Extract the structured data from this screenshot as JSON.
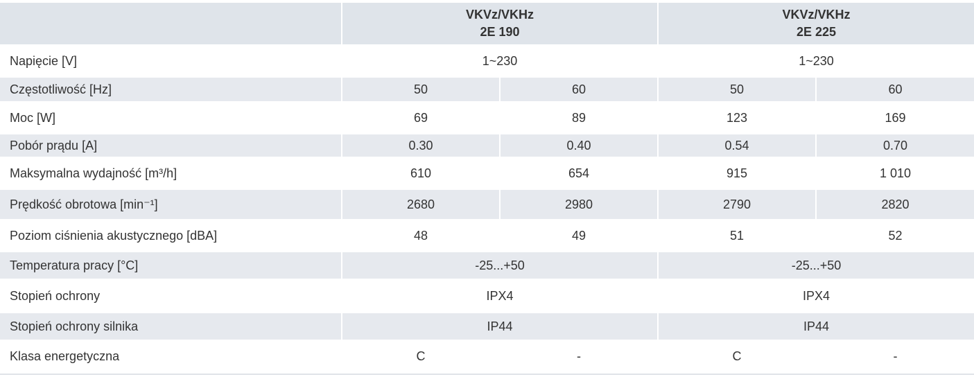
{
  "table": {
    "models": [
      {
        "line1": "VKVz/VKHz",
        "line2": "2E 190"
      },
      {
        "line1": "VKVz/VKHz",
        "line2": "2E 225"
      }
    ],
    "rows": [
      {
        "label": "Napięcie [V]",
        "cells": [
          "1~230",
          "1~230"
        ]
      },
      {
        "label": "Częstotliwość [Hz]",
        "cells": [
          "50",
          "60",
          "50",
          "60"
        ]
      },
      {
        "label": "Moc [W]",
        "cells": [
          "69",
          "89",
          "123",
          "169"
        ]
      },
      {
        "label": "Pobór prądu [A]",
        "cells": [
          "0.30",
          "0.40",
          "0.54",
          "0.70"
        ]
      },
      {
        "label": "Maksymalna wydajność [m³/h]",
        "cells": [
          "610",
          "654",
          "915",
          "1 010"
        ]
      },
      {
        "label": "Prędkość obrotowa [min⁻¹]",
        "cells": [
          "2680",
          "2980",
          "2790",
          "2820"
        ]
      },
      {
        "label": "Poziom ciśnienia akustycznego [dBA]",
        "cells": [
          "48",
          "49",
          "51",
          "52"
        ]
      },
      {
        "label": "Temperatura pracy [°C]",
        "cells": [
          "-25...+50",
          "-25...+50"
        ]
      },
      {
        "label": "Stopień ochrony",
        "cells": [
          "IPX4",
          "IPX4"
        ]
      },
      {
        "label": "Stopień ochrony silnika",
        "cells": [
          "IP44",
          "IP44"
        ]
      },
      {
        "label": "Klasa energetyczna",
        "cells": [
          "C",
          "-",
          "C",
          "-"
        ]
      }
    ]
  }
}
